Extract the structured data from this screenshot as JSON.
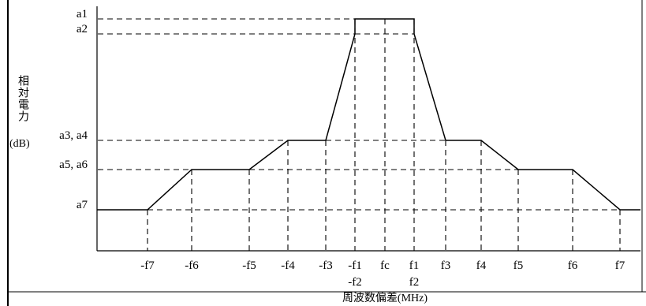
{
  "colors": {
    "line": "#000000",
    "background": "#ffffff"
  },
  "chart_data": {
    "type": "line",
    "xlabel": "周波数偏差(MHz)",
    "ylabel": "相対電力",
    "yunit": "(dB)",
    "x_ticks": [
      "-f7",
      "-f6",
      "-f5",
      "-f4",
      "-f3",
      "-f1",
      "fc",
      "f1",
      "f3",
      "f4",
      "f5",
      "f6",
      "f7"
    ],
    "x_ticks_row2": [
      "-f2",
      "f2"
    ],
    "y_levels": [
      "a1",
      "a2",
      "a3, a4",
      "a5, a6",
      "a7"
    ],
    "grid": true,
    "series": [
      {
        "points": [
          [
            "-f7",
            "a7"
          ],
          [
            "-f6",
            "a5, a6"
          ],
          [
            "-f5",
            "a5, a6"
          ],
          [
            "-f4",
            "a3, a4"
          ],
          [
            "-f3",
            "a3, a4"
          ],
          [
            "-f1",
            "a2"
          ],
          [
            "-f1",
            "a1"
          ],
          [
            "f1",
            "a1"
          ],
          [
            "f1",
            "a2"
          ],
          [
            "f3",
            "a3, a4"
          ],
          [
            "f4",
            "a3, a4"
          ],
          [
            "f5",
            "a5, a6"
          ],
          [
            "f6",
            "a5, a6"
          ],
          [
            "f7",
            "a7"
          ]
        ]
      }
    ]
  }
}
